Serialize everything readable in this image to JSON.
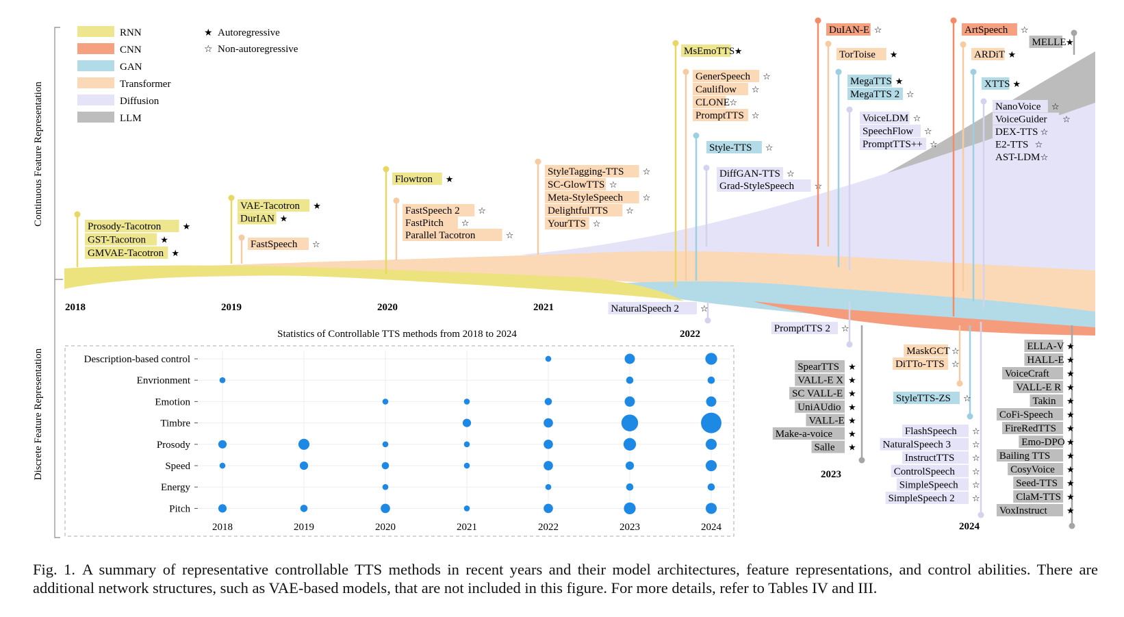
{
  "axis_labels": {
    "top": "Continuous Feature Representation",
    "bottom": "Discrete Feature Representation"
  },
  "legend": {
    "items": [
      {
        "label": "RNN",
        "color": "#eee58f"
      },
      {
        "label": "CNN",
        "color": "#f5a07f"
      },
      {
        "label": "GAN",
        "color": "#b2dbe7"
      },
      {
        "label": "Transformer",
        "color": "#fbd9b6"
      },
      {
        "label": "Diffusion",
        "color": "#e4e3f7"
      },
      {
        "label": "LLM",
        "color": "#bdbdbd"
      }
    ],
    "markers": [
      {
        "symbol": "★",
        "label": "Autoregressive"
      },
      {
        "symbol": "☆",
        "label": "Non-autoregressive"
      }
    ]
  },
  "years": [
    {
      "label": "2018"
    },
    {
      "label": "2019"
    },
    {
      "label": "2020"
    },
    {
      "label": "2021"
    },
    {
      "label": "2022"
    },
    {
      "label": "2023"
    },
    {
      "label": "2024"
    }
  ],
  "continuous_groups": [
    {
      "arch": "RNN",
      "models": [
        [
          "Prosody-Tacotron",
          "★"
        ],
        [
          "GST-Tacotron",
          "★"
        ],
        [
          "GMVAE-Tacotron",
          "★"
        ]
      ]
    },
    {
      "arch": "RNN",
      "models": [
        [
          "VAE-Tacotron",
          "★"
        ],
        [
          "DurIAN",
          "★"
        ]
      ]
    },
    {
      "arch": "Transformer",
      "models": [
        [
          "FastSpeech",
          "☆"
        ]
      ]
    },
    {
      "arch": "RNN",
      "models": [
        [
          "Flowtron",
          "★"
        ]
      ]
    },
    {
      "arch": "Transformer",
      "models": [
        [
          "FastSpeech 2",
          "☆"
        ],
        [
          "FastPitch",
          "☆"
        ],
        [
          "Parallel Tacotron",
          "☆"
        ]
      ]
    },
    {
      "arch": "Transformer",
      "models": [
        [
          "StyleTagging-TTS",
          "☆"
        ],
        [
          "SC-GlowTTS",
          "☆"
        ],
        [
          "Meta-StyleSpeech",
          "☆"
        ],
        [
          "DelightfulTTS",
          "☆"
        ],
        [
          "YourTTS",
          "☆"
        ]
      ]
    },
    {
      "arch": "RNN",
      "models": [
        [
          "MsEmoTTS",
          "★"
        ]
      ]
    },
    {
      "arch": "Transformer",
      "models": [
        [
          "GenerSpeech",
          "☆"
        ],
        [
          "Cauliflow",
          "☆"
        ],
        [
          "CLONE",
          "☆"
        ],
        [
          "PromptTTS",
          "☆"
        ]
      ]
    },
    {
      "arch": "GAN",
      "models": [
        [
          "Style-TTS",
          "☆"
        ]
      ]
    },
    {
      "arch": "Diffusion",
      "models": [
        [
          "DiffGAN-TTS",
          "☆"
        ],
        [
          "Grad-StyleSpeech",
          "☆"
        ]
      ]
    },
    {
      "arch": "CNN",
      "models": [
        [
          "DuIAN-E",
          "☆"
        ]
      ]
    },
    {
      "arch": "Transformer",
      "models": [
        [
          "TorToise",
          "★"
        ]
      ]
    },
    {
      "arch": "GAN",
      "models": [
        [
          "MegaTTS",
          "★"
        ],
        [
          "MegaTTS 2",
          "☆"
        ]
      ]
    },
    {
      "arch": "Diffusion",
      "models": [
        [
          "VoiceLDM",
          "☆"
        ],
        [
          "SpeechFlow",
          "☆"
        ],
        [
          "PromptTTS++",
          "☆"
        ]
      ]
    },
    {
      "arch": "CNN",
      "models": [
        [
          "ArtSpeech",
          "☆"
        ]
      ]
    },
    {
      "arch": "LLM",
      "models": [
        [
          "MELLE",
          "★"
        ]
      ]
    },
    {
      "arch": "Transformer",
      "models": [
        [
          "ARDiT",
          "★"
        ]
      ]
    },
    {
      "arch": "GAN",
      "models": [
        [
          "XTTS",
          "★"
        ]
      ]
    },
    {
      "arch": "Diffusion",
      "models": [
        [
          "NanoVoice",
          "☆"
        ],
        [
          "VoiceGuider",
          "☆"
        ],
        [
          "DEX-TTS",
          "☆"
        ],
        [
          "E2-TTS",
          "☆"
        ],
        [
          "AST-LDM",
          "☆"
        ]
      ]
    }
  ],
  "discrete_groups": [
    {
      "arch": "Diffusion",
      "models": [
        [
          "NaturalSpeech 2",
          "☆"
        ]
      ]
    },
    {
      "arch": "Diffusion",
      "models": [
        [
          "PromptTTS 2",
          "☆"
        ]
      ]
    },
    {
      "arch": "LLM",
      "models": [
        [
          "SpearTTS",
          "★"
        ],
        [
          "VALL-E X",
          "★"
        ],
        [
          "SC VALL-E",
          "★"
        ],
        [
          "UniAUdio",
          "★"
        ],
        [
          "VALL-E",
          "★"
        ],
        [
          "Make-a-voice",
          "★"
        ],
        [
          "Salle",
          "★"
        ]
      ]
    },
    {
      "arch": "Transformer",
      "models": [
        [
          "MaskGCT",
          "☆"
        ],
        [
          "DiTTo-TTS",
          "☆"
        ]
      ]
    },
    {
      "arch": "GAN",
      "models": [
        [
          "StyleTTS-ZS",
          "☆"
        ]
      ]
    },
    {
      "arch": "Diffusion",
      "models": [
        [
          "FlashSpeech",
          "☆"
        ],
        [
          "NaturalSpeech 3",
          "☆"
        ],
        [
          "InstructTTS",
          "☆"
        ],
        [
          "ControlSpeech",
          "☆"
        ],
        [
          "SimpleSpeech",
          "☆"
        ],
        [
          "SimpleSpeech 2",
          "☆"
        ]
      ]
    },
    {
      "arch": "LLM",
      "models": [
        [
          "ELLA-V",
          "★"
        ],
        [
          "HALL-E",
          "★"
        ],
        [
          "VoiceCraft",
          "★"
        ],
        [
          "VALL-E R",
          "★"
        ],
        [
          "Takin",
          "★"
        ],
        [
          "CoFi-Speech",
          "★"
        ],
        [
          "FireRedTTS",
          "★"
        ],
        [
          "Emo-DPO",
          "★"
        ],
        [
          "Bailing TTS",
          "★"
        ],
        [
          "CosyVoice",
          "★"
        ],
        [
          "Seed-TTS",
          "★"
        ],
        [
          "ClaM-TTS",
          "★"
        ],
        [
          "VoxInstruct",
          "★"
        ]
      ]
    }
  ],
  "chart_data": {
    "type": "scatter",
    "title": "Statistics of Controllable TTS methods from 2018 to 2024",
    "x": [
      "2018",
      "2019",
      "2020",
      "2021",
      "2022",
      "2023",
      "2024"
    ],
    "categories": [
      "Description-based control",
      "Envrionment",
      "Emotion",
      "Timbre",
      "Prosody",
      "Speed",
      "Energy",
      "Pitch"
    ],
    "marker_color": "#1e88e5",
    "grid": true,
    "size_encodes": "relative number of methods (bubble size)",
    "points": [
      {
        "category": "Description-based control",
        "year": "2022",
        "size": 1
      },
      {
        "category": "Description-based control",
        "year": "2023",
        "size": 3
      },
      {
        "category": "Description-based control",
        "year": "2024",
        "size": 4
      },
      {
        "category": "Envrionment",
        "year": "2018",
        "size": 1
      },
      {
        "category": "Envrionment",
        "year": "2023",
        "size": 1.5
      },
      {
        "category": "Envrionment",
        "year": "2024",
        "size": 1.5
      },
      {
        "category": "Emotion",
        "year": "2020",
        "size": 1
      },
      {
        "category": "Emotion",
        "year": "2021",
        "size": 1
      },
      {
        "category": "Emotion",
        "year": "2022",
        "size": 1.5
      },
      {
        "category": "Emotion",
        "year": "2023",
        "size": 3
      },
      {
        "category": "Emotion",
        "year": "2024",
        "size": 3
      },
      {
        "category": "Timbre",
        "year": "2021",
        "size": 2
      },
      {
        "category": "Timbre",
        "year": "2022",
        "size": 2.5
      },
      {
        "category": "Timbre",
        "year": "2023",
        "size": 8
      },
      {
        "category": "Timbre",
        "year": "2024",
        "size": 12
      },
      {
        "category": "Prosody",
        "year": "2018",
        "size": 2
      },
      {
        "category": "Prosody",
        "year": "2019",
        "size": 3.5
      },
      {
        "category": "Prosody",
        "year": "2020",
        "size": 1
      },
      {
        "category": "Prosody",
        "year": "2021",
        "size": 1
      },
      {
        "category": "Prosody",
        "year": "2022",
        "size": 2.5
      },
      {
        "category": "Prosody",
        "year": "2023",
        "size": 4.5
      },
      {
        "category": "Prosody",
        "year": "2024",
        "size": 3.5
      },
      {
        "category": "Speed",
        "year": "2018",
        "size": 1
      },
      {
        "category": "Speed",
        "year": "2019",
        "size": 2
      },
      {
        "category": "Speed",
        "year": "2020",
        "size": 1.5
      },
      {
        "category": "Speed",
        "year": "2021",
        "size": 1
      },
      {
        "category": "Speed",
        "year": "2022",
        "size": 2.5
      },
      {
        "category": "Speed",
        "year": "2023",
        "size": 2
      },
      {
        "category": "Speed",
        "year": "2024",
        "size": 3.5
      },
      {
        "category": "Energy",
        "year": "2020",
        "size": 1
      },
      {
        "category": "Energy",
        "year": "2022",
        "size": 1
      },
      {
        "category": "Energy",
        "year": "2023",
        "size": 1.5
      },
      {
        "category": "Energy",
        "year": "2024",
        "size": 1.5
      },
      {
        "category": "Pitch",
        "year": "2018",
        "size": 2
      },
      {
        "category": "Pitch",
        "year": "2019",
        "size": 1.5
      },
      {
        "category": "Pitch",
        "year": "2020",
        "size": 2.5
      },
      {
        "category": "Pitch",
        "year": "2021",
        "size": 1
      },
      {
        "category": "Pitch",
        "year": "2022",
        "size": 2.5
      },
      {
        "category": "Pitch",
        "year": "2023",
        "size": 4
      },
      {
        "category": "Pitch",
        "year": "2024",
        "size": 3.5
      }
    ]
  },
  "caption": {
    "label": "Fig. 1.",
    "text": "A summary of representative controllable TTS methods in recent years and their model architectures, feature representations, and control abilities. There are additional network structures, such as VAE-based models, that are not included in this figure. For more details, refer to Tables IV and III."
  }
}
